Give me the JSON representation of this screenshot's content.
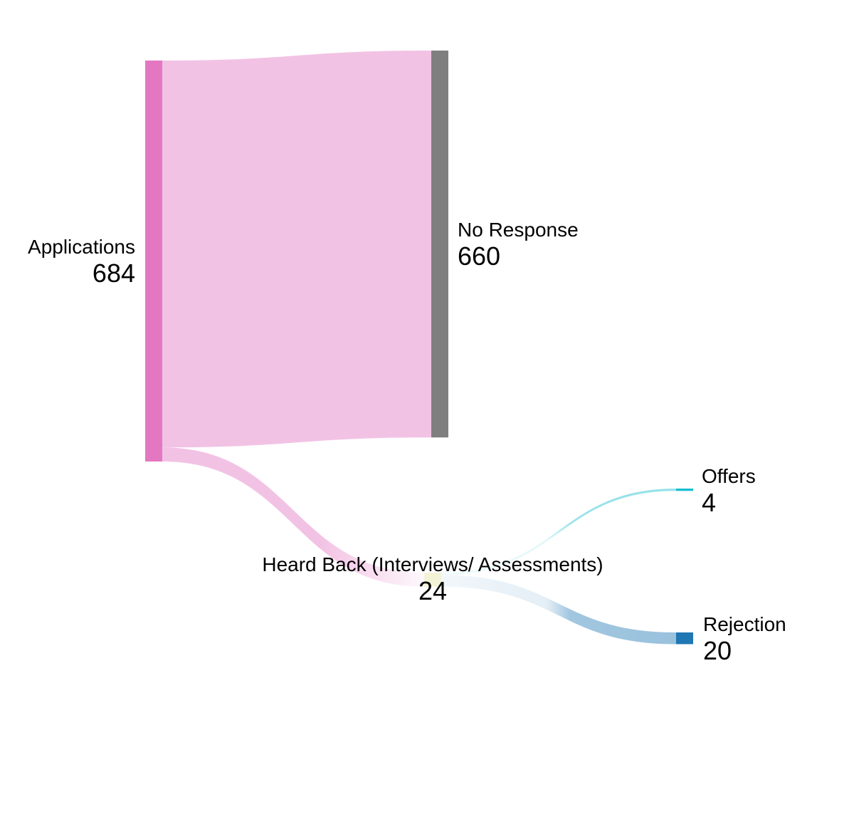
{
  "chart_data": {
    "type": "sankey",
    "nodes": [
      {
        "id": "applications",
        "name": "Applications",
        "value": "684",
        "color": "#e377c2"
      },
      {
        "id": "no_response",
        "name": "No Response",
        "value": "660",
        "color": "#7f7f7f"
      },
      {
        "id": "heard_back",
        "name": "Heard Back (Interviews/ Assessments)",
        "value": "24",
        "color": "#dbdb8d"
      },
      {
        "id": "offers",
        "name": "Offers",
        "value": "4",
        "color": "#17becf"
      },
      {
        "id": "rejection",
        "name": "Rejection",
        "value": "20",
        "color": "#1f77b4"
      }
    ],
    "links": [
      {
        "source": "applications",
        "target": "no_response",
        "value": 660
      },
      {
        "source": "applications",
        "target": "heard_back",
        "value": 24
      },
      {
        "source": "heard_back",
        "target": "offers",
        "value": 4
      },
      {
        "source": "heard_back",
        "target": "rejection",
        "value": 20
      }
    ]
  }
}
